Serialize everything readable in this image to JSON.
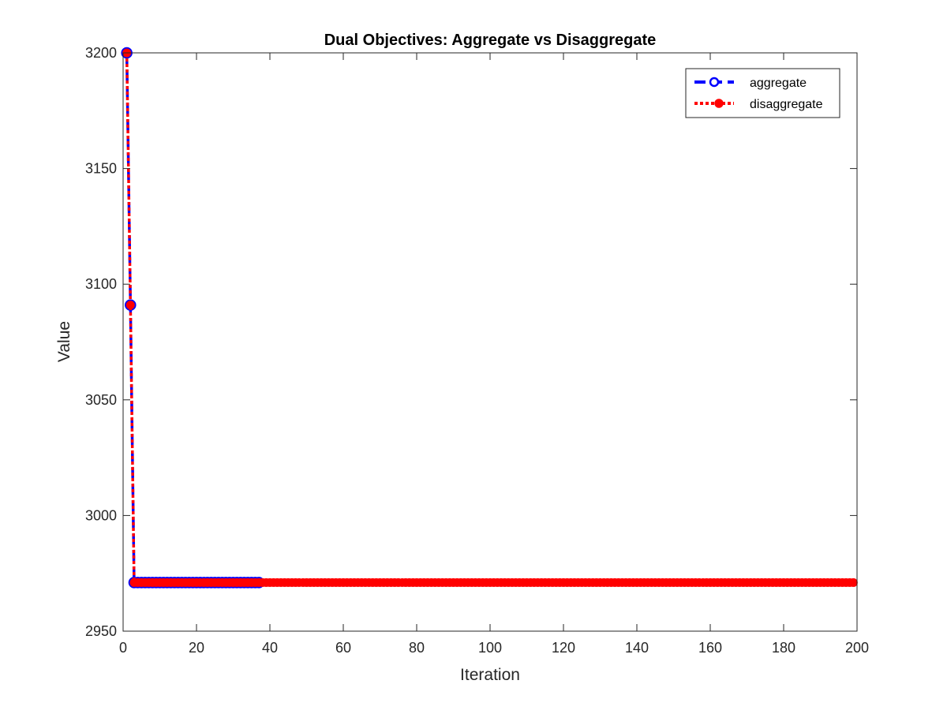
{
  "chart_data": {
    "type": "line",
    "title": "Dual Objectives: Aggregate vs Disaggregate",
    "xlabel": "Iteration",
    "ylabel": "Value",
    "xlim": [
      0,
      200
    ],
    "ylim": [
      2950,
      3200
    ],
    "xticks": [
      0,
      20,
      40,
      60,
      80,
      100,
      120,
      140,
      160,
      180,
      200
    ],
    "yticks": [
      2950,
      3000,
      3050,
      3100,
      3150,
      3200
    ],
    "grid": false,
    "legend_position": "top-right",
    "series": [
      {
        "name": "aggregate",
        "color": "#0000ff",
        "line_style": "dashed",
        "marker": "open-circle",
        "points": [
          [
            1,
            3200
          ],
          [
            2,
            3091
          ],
          [
            3,
            2971
          ]
        ],
        "plateau": {
          "from": 3,
          "to": 37,
          "value": 2971
        }
      },
      {
        "name": "disaggregate",
        "color": "#ff0000",
        "line_style": "dotted",
        "marker": "filled-circle",
        "points": [
          [
            1,
            3200
          ],
          [
            2,
            3091
          ],
          [
            3,
            2971
          ]
        ],
        "plateau": {
          "from": 3,
          "to": 199,
          "value": 2971
        }
      }
    ]
  }
}
